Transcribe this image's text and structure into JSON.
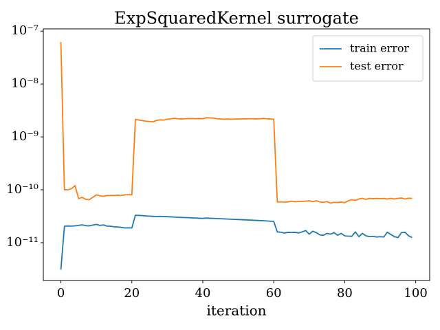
{
  "chart_data": {
    "type": "line",
    "title": "ExpSquaredKernel surrogate",
    "x_label": "iteration",
    "x": [
      0,
      1,
      2,
      3,
      4,
      5,
      6,
      7,
      8,
      9,
      10,
      11,
      12,
      13,
      14,
      15,
      16,
      17,
      18,
      19,
      20,
      21,
      22,
      23,
      24,
      25,
      26,
      27,
      28,
      29,
      30,
      31,
      32,
      33,
      34,
      35,
      36,
      37,
      38,
      39,
      40,
      41,
      42,
      43,
      44,
      45,
      46,
      47,
      48,
      49,
      50,
      51,
      52,
      53,
      54,
      55,
      56,
      57,
      58,
      59,
      60,
      61,
      62,
      63,
      64,
      65,
      66,
      67,
      68,
      69,
      70,
      71,
      72,
      73,
      74,
      75,
      76,
      77,
      78,
      79,
      80,
      81,
      82,
      83,
      84,
      85,
      86,
      87,
      88,
      89,
      90,
      91,
      92,
      93,
      94,
      95,
      96,
      97,
      98,
      99
    ],
    "series": [
      {
        "name": "train error",
        "color": "#1f77b4",
        "values": [
          3.1e-12,
          2.05e-11,
          2.07e-11,
          2.06e-11,
          2.08e-11,
          2.12e-11,
          2.18e-11,
          2.1e-11,
          2.08e-11,
          2.15e-11,
          2.22e-11,
          2.12e-11,
          2.17e-11,
          2.06e-11,
          2.05e-11,
          2e-11,
          1.98e-11,
          1.95e-11,
          1.9e-11,
          1.91e-11,
          1.9e-11,
          3.3e-11,
          3.28e-11,
          3.25e-11,
          3.2e-11,
          3.18e-11,
          3.15e-11,
          3.13e-11,
          3.14e-11,
          3.12e-11,
          3.1e-11,
          3.08e-11,
          3.05e-11,
          3.03e-11,
          3e-11,
          2.98e-11,
          2.97e-11,
          2.95e-11,
          2.93e-11,
          2.9e-11,
          2.88e-11,
          2.92e-11,
          2.9e-11,
          2.88e-11,
          2.86e-11,
          2.84e-11,
          2.82e-11,
          2.8e-11,
          2.78e-11,
          2.76e-11,
          2.74e-11,
          2.72e-11,
          2.7e-11,
          2.68e-11,
          2.66e-11,
          2.64e-11,
          2.62e-11,
          2.6e-11,
          2.58e-11,
          2.55e-11,
          2.52e-11,
          1.6e-11,
          1.58e-11,
          1.52e-11,
          1.57e-11,
          1.56e-11,
          1.57e-11,
          1.53e-11,
          1.6e-11,
          1.7e-11,
          1.45e-11,
          1.65e-11,
          1.55e-11,
          1.4e-11,
          1.38e-11,
          1.5e-11,
          1.45e-11,
          1.55e-11,
          1.38e-11,
          1.5e-11,
          1.35e-11,
          1.33e-11,
          1.32e-11,
          1.6e-11,
          1.3e-11,
          1.5e-11,
          1.35e-11,
          1.3e-11,
          1.32e-11,
          1.28e-11,
          1.3e-11,
          1.28e-11,
          1.58e-11,
          1.43e-11,
          1.3e-11,
          1.25e-11,
          1.55e-11,
          1.57e-11,
          1.35e-11,
          1.25e-11
        ]
      },
      {
        "name": "test error",
        "color": "#ff7f0e",
        "values": [
          6.2e-08,
          1e-10,
          1e-10,
          1.05e-10,
          1.2e-10,
          6.8e-11,
          7.2e-11,
          6.6e-11,
          6.5e-11,
          7.2e-11,
          8e-11,
          7.7e-11,
          7.5e-11,
          7.8e-11,
          7.8e-11,
          7.8e-11,
          7.9e-11,
          7.8e-11,
          8e-11,
          8.1e-11,
          8e-11,
          2.15e-09,
          2.08e-09,
          2.03e-09,
          1.98e-09,
          1.95e-09,
          1.93e-09,
          2.05e-09,
          2.1e-09,
          2.08e-09,
          2.15e-09,
          2.2e-09,
          2.25e-09,
          2.2e-09,
          2.18e-09,
          2.2e-09,
          2.22e-09,
          2.22e-09,
          2.2e-09,
          2.22e-09,
          2.2e-09,
          2.3e-09,
          2.28e-09,
          2.27e-09,
          2.2e-09,
          2.18e-09,
          2.15e-09,
          2.18e-09,
          2.15e-09,
          2.17e-09,
          2.18e-09,
          2.2e-09,
          2.18e-09,
          2.2e-09,
          2.2e-09,
          2.18e-09,
          2.2e-09,
          2.23e-09,
          2.2e-09,
          2.18e-09,
          2.15e-09,
          5.9e-11,
          5.9e-11,
          5.85e-11,
          5.9e-11,
          6.1e-11,
          5.95e-11,
          6e-11,
          6.05e-11,
          6.1e-11,
          6.2e-11,
          5.95e-11,
          6.2e-11,
          5.9e-11,
          5.8e-11,
          6e-11,
          5.6e-11,
          5.8e-11,
          5.75e-11,
          5.9e-11,
          5.7e-11,
          6.2e-11,
          6.5e-11,
          6.3e-11,
          6.7e-11,
          6.9e-11,
          6.6e-11,
          6.9e-11,
          6.8e-11,
          6.85e-11,
          6.8e-11,
          6.85e-11,
          6.7e-11,
          6.9e-11,
          6.7e-11,
          6.9e-11,
          7e-11,
          6.7e-11,
          6.95e-11,
          6.85e-11
        ]
      }
    ],
    "xlim": [
      -4.95,
      103.95
    ],
    "xticks": [
      0,
      20,
      40,
      60,
      80,
      100
    ],
    "ylim": [
      1.93e-12,
      1.1e-07
    ],
    "y_scale": "log",
    "yticks": [
      {
        "value": 1e-11,
        "label": "10⁻¹¹"
      },
      {
        "value": 1e-10,
        "label": "10⁻¹⁰"
      },
      {
        "value": 1e-09,
        "label": "10⁻⁹"
      },
      {
        "value": 1e-08,
        "label": "10⁻⁸"
      },
      {
        "value": 1e-07,
        "label": "10⁻⁷"
      }
    ],
    "legend": "upper right",
    "grid": false
  }
}
